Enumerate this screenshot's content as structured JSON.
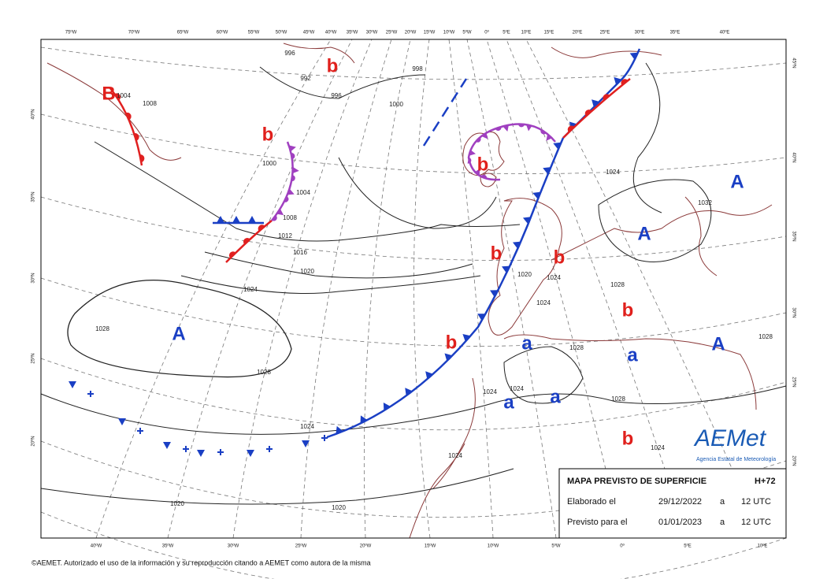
{
  "map": {
    "top_lon_labels": [
      "75ºW",
      "70ºW",
      "65ºW",
      "60ºW",
      "55ºW",
      "50ºW",
      "45ºW",
      "40ºW",
      "35ºW",
      "30ºW",
      "25ºW",
      "20ºW",
      "15ºW",
      "10ºW",
      "5ºW",
      "0º",
      "5ºE",
      "10ºE",
      "15ºE",
      "20ºE",
      "25ºE",
      "30ºE",
      "35ºE",
      "40ºE"
    ],
    "bottom_lon_labels": [
      "40ºW",
      "35ºW",
      "30ºW",
      "25ºW",
      "20ºW",
      "15ºW",
      "10ºW",
      "5ºW",
      "0º",
      "5ºE",
      "10ºE"
    ],
    "left_lat_labels": [
      "40ºN",
      "35ºN",
      "30ºN",
      "25ºN",
      "20ºN"
    ],
    "right_lat_labels": [
      "45ºN",
      "40ºN",
      "35ºN",
      "30ºN",
      "25ºN",
      "20ºN"
    ],
    "pressure_centers": [
      {
        "label": "B",
        "color": "#e0201c"
      },
      {
        "label": "b",
        "color": "#e0201c"
      },
      {
        "label": "b",
        "color": "#e0201c"
      },
      {
        "label": "b",
        "color": "#e0201c"
      },
      {
        "label": "A",
        "color": "#1a3fc4"
      },
      {
        "label": "A",
        "color": "#1a3fc4"
      },
      {
        "label": "b",
        "color": "#e0201c"
      },
      {
        "label": "b",
        "color": "#e0201c"
      },
      {
        "label": "b",
        "color": "#e0201c"
      },
      {
        "label": "A",
        "color": "#1a3fc4"
      },
      {
        "label": "b",
        "color": "#e0201c"
      },
      {
        "label": "a",
        "color": "#1a3fc4"
      },
      {
        "label": "a",
        "color": "#1a3fc4"
      },
      {
        "label": "A",
        "color": "#1a3fc4"
      },
      {
        "label": "a",
        "color": "#1a3fc4"
      },
      {
        "label": "a",
        "color": "#1a3fc4"
      },
      {
        "label": "b",
        "color": "#e0201c"
      }
    ],
    "isobar_labels": [
      1012,
      1016,
      1020,
      1024,
      1028,
      1028,
      1024,
      1020,
      1020,
      996,
      992,
      996,
      998,
      1000,
      1004,
      1008,
      1004,
      1008,
      1000,
      1024,
      1028,
      1028,
      1028,
      1024,
      1024,
      1024,
      1024,
      1028,
      1032,
      1020,
      1024,
      1024
    ]
  },
  "info_box": {
    "title": "MAPA PREVISTO DE SUPERFICIE",
    "lead_time": "H+72",
    "made_label": "Elaborado el",
    "made_date": "29/12/2022",
    "made_at": "a",
    "made_time": "12 UTC",
    "valid_label": "Previsto para el",
    "valid_date": "01/01/2023",
    "valid_at": "a",
    "valid_time": "12 UTC"
  },
  "logo": {
    "name": "AEMet",
    "subtitle": "Agencia Estatal de Meteorología"
  },
  "footer": "©AEMET. Autorizado el uso de la información y su reproducción citando a AEMET como autora de la misma"
}
